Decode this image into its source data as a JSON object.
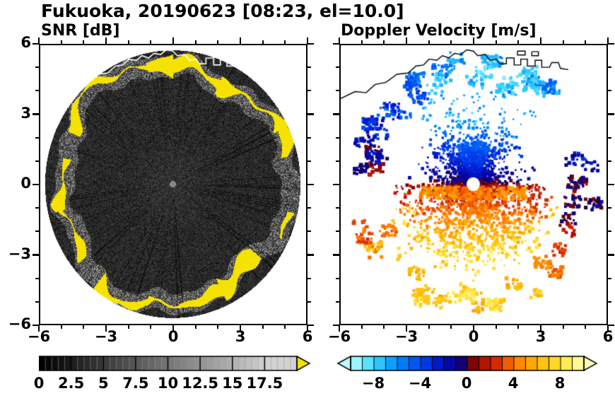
{
  "title": "Fukuoka, 20190623 [08:23, el=10.0]",
  "panels": [
    {
      "subtitle": "SNR [dB]",
      "xtick_labels": [
        "−6",
        "−3",
        "0",
        "3",
        "6"
      ],
      "ytick_labels": [
        "6",
        "3",
        "0",
        "−3",
        "−6"
      ]
    },
    {
      "subtitle": "Doppler Velocity [m/s]",
      "xtick_labels": [
        "−6",
        "−3",
        "0",
        "3",
        "6"
      ]
    }
  ],
  "coastline": {
    "main": [
      [
        -6.0,
        3.7
      ],
      [
        -5.35,
        4.0
      ],
      [
        -4.85,
        3.95
      ],
      [
        -4.45,
        4.3
      ],
      [
        -3.95,
        4.4
      ],
      [
        -3.45,
        4.75
      ],
      [
        -2.95,
        4.8
      ],
      [
        -2.6,
        5.1
      ],
      [
        -2.25,
        5.15
      ],
      [
        -2.0,
        5.4
      ],
      [
        -1.65,
        5.35
      ],
      [
        -1.4,
        5.55
      ],
      [
        -1.1,
        5.45
      ],
      [
        -0.85,
        5.65
      ],
      [
        -0.55,
        5.6
      ],
      [
        -0.3,
        5.8
      ],
      [
        0.0,
        5.75
      ],
      [
        0.2,
        5.55
      ],
      [
        0.55,
        5.6
      ],
      [
        0.75,
        5.35
      ],
      [
        1.05,
        5.4
      ],
      [
        1.2,
        5.2
      ],
      [
        1.5,
        5.2
      ],
      [
        1.5,
        5.45
      ],
      [
        1.85,
        5.45
      ],
      [
        1.85,
        5.15
      ],
      [
        2.15,
        5.15
      ],
      [
        2.15,
        5.4
      ],
      [
        2.45,
        5.4
      ],
      [
        2.45,
        5.1
      ],
      [
        2.8,
        5.1
      ],
      [
        2.8,
        5.35
      ],
      [
        3.1,
        5.35
      ],
      [
        3.1,
        5.05
      ],
      [
        3.45,
        5.05
      ],
      [
        3.55,
        5.25
      ],
      [
        3.85,
        5.25
      ],
      [
        3.95,
        5.0
      ],
      [
        4.3,
        4.95
      ]
    ],
    "blocks": [
      [
        [
          2.0,
          5.75
        ],
        [
          2.35,
          5.75
        ],
        [
          2.35,
          5.58
        ],
        [
          2.0,
          5.58
        ],
        [
          2.0,
          5.75
        ]
      ],
      [
        [
          2.65,
          5.72
        ],
        [
          2.95,
          5.72
        ],
        [
          2.95,
          5.55
        ],
        [
          2.65,
          5.55
        ],
        [
          2.65,
          5.72
        ]
      ]
    ]
  },
  "chart_data": [
    {
      "type": "heatmap",
      "title": "SNR [dB]",
      "variable": "signal-to-noise ratio",
      "units": "dB",
      "xlim": [
        -6,
        6
      ],
      "ylim": [
        -6,
        6
      ],
      "xticks": [
        -6,
        -3,
        0,
        3,
        6
      ],
      "yticks": [
        6,
        3,
        0,
        -3,
        -6
      ],
      "minor_tick_step": 1,
      "scan_radius": 5.78,
      "colormap": "grayscale",
      "clutter_color": "#f6e200",
      "features": "dark speckled PPI radar scan disc centred on the radar site; bright yellow ground-clutter ring (SNR above colourbar maximum) along the outer edge of the scan; coastline outlined in white across the top of the disc",
      "colorbar": {
        "min": 0,
        "max": 20,
        "tick_values": [
          0,
          2.5,
          5,
          7.5,
          10,
          12.5,
          15,
          17.5
        ],
        "tick_labels": [
          "0",
          "2.5",
          "5",
          "7.5",
          "10",
          "12.5",
          "15",
          "17.5"
        ],
        "over_arrow": "yellow"
      }
    },
    {
      "type": "heatmap",
      "title": "Doppler Velocity [m/s]",
      "variable": "Doppler velocity",
      "units": "m/s",
      "xlim": [
        -6,
        6
      ],
      "ylim": [
        -6,
        6
      ],
      "xticks": [
        -6,
        -3,
        0,
        3,
        6
      ],
      "yticks": [
        6,
        3,
        0,
        -3,
        -6
      ],
      "flow_model": {
        "center": "v = −(1.2 + 1.75·r)·sin(azimuth)",
        "ring": "v = −7.3·sin(azimuth) − 0.9·cos(azimuth) for r ≈ 4.35–5.55",
        "meaning": "negative (navy/blue/cyan) velocities north of the radar, positive (dark red/orange/yellow) south of it; scattered precipitation blobs in an outer ring"
      },
      "colormap_stops": [
        [
          -10,
          [
            185,
            255,
            255
          ]
        ],
        [
          -8,
          [
            60,
            215,
            255
          ]
        ],
        [
          -6,
          [
            0,
            140,
            255
          ]
        ],
        [
          -4,
          [
            0,
            70,
            240
          ]
        ],
        [
          -2.5,
          [
            0,
            25,
            205
          ]
        ],
        [
          -1,
          [
            10,
            0,
            150
          ]
        ],
        [
          -0.05,
          [
            25,
            0,
            85
          ]
        ],
        [
          0.05,
          [
            95,
            0,
            0
          ]
        ],
        [
          1,
          [
            160,
            10,
            0
          ]
        ],
        [
          2.5,
          [
            215,
            40,
            0
          ]
        ],
        [
          4,
          [
            255,
            120,
            0
          ]
        ],
        [
          6,
          [
            255,
            185,
            0
          ]
        ],
        [
          8,
          [
            255,
            228,
            50
          ]
        ],
        [
          10,
          [
            255,
            255,
            185
          ]
        ]
      ],
      "colorbar": {
        "min": -10,
        "max": 10,
        "tick_values": [
          -8,
          -4,
          0,
          4,
          8
        ],
        "tick_labels": [
          "−8",
          "−4",
          "0",
          "4",
          "8"
        ]
      }
    }
  ]
}
